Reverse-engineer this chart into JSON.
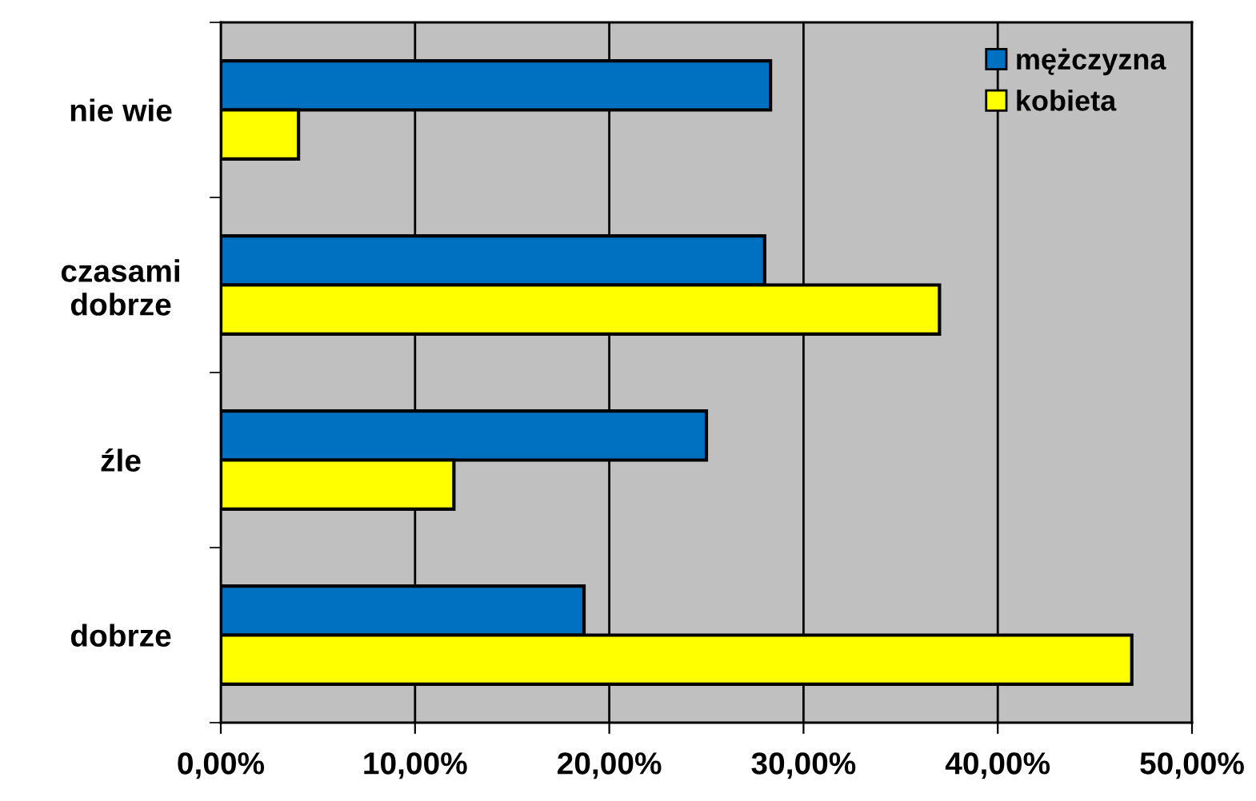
{
  "chart_data": {
    "type": "bar",
    "orientation": "horizontal",
    "categories": [
      "nie wie",
      "czasami\ndobrze",
      "źle",
      "dobrze"
    ],
    "series": [
      {
        "name": "mężczyzna",
        "color": "#0070c0",
        "values": [
          28.3,
          28.0,
          25.0,
          18.7
        ]
      },
      {
        "name": "kobieta",
        "color": "#ffff00",
        "values": [
          4.0,
          37.0,
          12.0,
          46.9
        ]
      }
    ],
    "xlim": [
      0,
      50
    ],
    "xticks": [
      {
        "value": 0,
        "label": "0,00%"
      },
      {
        "value": 10,
        "label": "10,00%"
      },
      {
        "value": 20,
        "label": "20,00%"
      },
      {
        "value": 30,
        "label": "30,00%"
      },
      {
        "value": 40,
        "label": "40,00%"
      },
      {
        "value": 50,
        "label": "50,00%"
      }
    ],
    "grid": "x",
    "legend": "top right"
  }
}
